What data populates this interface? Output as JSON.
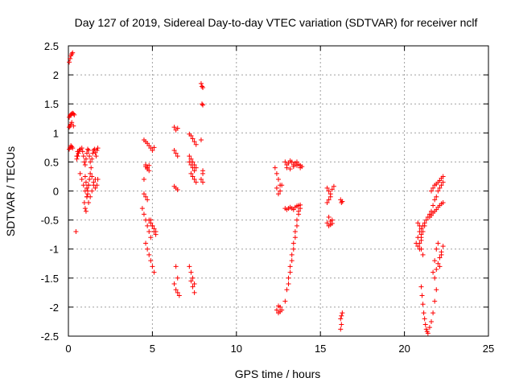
{
  "chart_data": {
    "type": "scatter",
    "title": "Day 127 of 2019, Sidereal Day-to-day VTEC variation (SDTVAR) for receiver nclf",
    "xlabel": "GPS time / hours",
    "ylabel": "SDTVAR / TECUs",
    "xlim": [
      0,
      25
    ],
    "ylim": [
      -2.5,
      2.5
    ],
    "xticks": [
      0,
      5,
      10,
      15,
      20,
      25
    ],
    "yticks": [
      -2.5,
      -2,
      -1.5,
      -1,
      -0.5,
      0,
      0.5,
      1,
      1.5,
      2,
      2.5
    ],
    "grid": true,
    "marker": "+",
    "color": "#ff0000",
    "series": [
      {
        "name": "SDTVAR",
        "x": [
          0.05,
          0.1,
          0.15,
          0.2,
          0.25,
          0.05,
          0.1,
          0.15,
          0.2,
          0.3,
          0.05,
          0.1,
          0.15,
          0.2,
          0.25,
          0.3,
          0.35,
          0.05,
          0.1,
          0.15,
          0.2,
          0.25,
          0.55,
          0.45,
          0.5,
          0.55,
          0.6,
          0.65,
          0.7,
          0.8,
          0.85,
          0.9,
          0.95,
          1.0,
          1.05,
          1.1,
          1.15,
          1.2,
          1.25,
          1.3,
          1.35,
          1.4,
          1.45,
          1.5,
          1.55,
          1.6,
          1.65,
          1.7,
          1.75,
          0.7,
          0.8,
          0.9,
          1.0,
          1.1,
          1.2,
          1.3,
          1.4,
          1.5,
          1.6,
          1.0,
          1.05,
          1.1,
          1.15,
          1.2,
          1.25,
          1.3,
          1.4,
          1.5,
          1.6,
          1.7,
          1.75,
          0.95,
          1.0,
          1.05,
          1.1,
          1.15,
          1.2,
          0.5,
          4.5,
          4.6,
          4.7,
          4.8,
          4.9,
          4.6,
          4.7,
          4.8,
          4.5,
          4.6,
          4.7,
          4.8,
          4.4,
          4.5,
          4.6,
          4.7,
          4.8,
          4.9,
          4.5,
          4.6,
          4.7,
          4.8,
          4.9,
          5.0,
          5.1,
          5.2,
          4.6,
          4.7,
          4.8,
          4.9,
          5.0,
          5.1,
          4.9,
          5.0,
          5.1,
          5.2,
          5.0,
          5.1,
          6.3,
          6.4,
          6.5,
          6.3,
          6.4,
          6.5,
          6.3,
          6.4,
          6.5,
          6.4,
          6.5,
          6.3,
          6.4,
          6.5,
          6.6,
          7.2,
          7.3,
          7.4,
          7.5,
          7.6,
          7.2,
          7.3,
          7.4,
          7.5,
          7.3,
          7.4,
          7.5,
          7.6,
          7.2,
          7.3,
          7.4,
          7.5,
          7.3,
          7.4,
          7.5,
          7.2,
          7.3,
          7.4,
          7.5,
          7.6,
          7.9,
          7.95,
          8.0,
          7.95,
          8.0,
          7.9,
          8.0,
          8.0,
          7.9,
          8.0,
          12.3,
          12.4,
          12.5,
          12.6,
          12.4,
          12.5,
          12.6,
          12.7,
          12.4,
          12.5,
          12.6,
          12.7,
          12.5,
          12.6,
          12.9,
          13.0,
          13.1,
          13.2,
          13.3,
          13.4,
          13.5,
          13.6,
          13.7,
          13.8,
          13.9,
          13.0,
          13.2,
          13.4,
          13.6,
          13.8,
          12.9,
          13.0,
          13.1,
          13.2,
          13.3,
          13.4,
          13.5,
          13.6,
          13.7,
          13.8,
          12.9,
          13.0,
          13.1,
          13.2,
          13.3,
          13.4,
          13.5,
          13.6,
          13.7,
          13.1,
          13.2,
          13.3,
          13.4,
          13.5,
          13.6,
          13.7,
          13.8,
          15.4,
          15.5,
          15.6,
          15.7,
          15.8,
          15.4,
          15.5,
          15.6,
          15.7,
          15.5,
          15.6,
          15.7,
          15.4,
          15.5,
          15.6,
          16.2,
          16.25,
          16.3,
          16.2,
          16.25,
          16.3,
          16.2,
          16.25,
          20.8,
          20.9,
          21.0,
          21.1,
          21.2,
          20.8,
          20.9,
          21.0,
          21.1,
          20.7,
          20.8,
          20.9,
          21.0,
          20.9,
          21.0,
          21.0,
          21.1,
          21.2,
          21.3,
          21.4,
          21.5,
          21.6,
          21.7,
          21.8,
          21.9,
          22.0,
          22.1,
          22.2,
          22.3,
          21.5,
          21.6,
          21.7,
          21.8,
          21.9,
          22.0,
          22.1,
          22.2,
          22.3,
          21.6,
          21.7,
          21.8,
          21.9,
          22.0,
          22.1,
          22.2,
          22.3,
          21.0,
          21.05,
          21.1,
          21.15,
          21.2,
          21.25,
          21.3,
          21.35,
          21.4,
          21.5,
          21.6,
          21.7,
          21.8,
          21.9,
          21.7,
          21.8,
          21.9,
          22.0,
          22.1,
          22.2,
          22.3,
          21.8,
          21.9,
          22.0,
          22.1,
          22.2
        ],
        "y": [
          2.22,
          2.28,
          2.33,
          2.36,
          2.38,
          1.1,
          1.12,
          1.15,
          1.18,
          1.12,
          1.27,
          1.3,
          1.32,
          1.33,
          1.34,
          1.33,
          1.31,
          0.72,
          0.75,
          0.78,
          0.76,
          0.74,
          0.68,
          -0.7,
          0.55,
          0.6,
          0.65,
          0.7,
          0.72,
          0.74,
          0.68,
          0.6,
          0.5,
          0.45,
          0.55,
          0.65,
          0.72,
          0.7,
          0.6,
          0.5,
          0.4,
          0.55,
          0.65,
          0.7,
          0.72,
          0.66,
          0.6,
          0.7,
          0.74,
          0.3,
          0.2,
          0.1,
          0.0,
          -0.1,
          -0.2,
          -0.1,
          0.0,
          0.1,
          0.2,
          0.25,
          0.15,
          0.05,
          -0.05,
          0.1,
          0.2,
          0.3,
          0.25,
          0.15,
          0.05,
          0.1,
          0.2,
          -0.2,
          -0.3,
          -0.35,
          -0.1,
          0.0,
          0.1,
          0.6,
          0.88,
          0.85,
          0.82,
          0.78,
          0.74,
          0.45,
          0.4,
          0.35,
          0.2,
          0.42,
          0.38,
          0.44,
          -0.3,
          -0.4,
          -0.5,
          -0.6,
          -0.7,
          -0.8,
          -0.05,
          -0.1,
          -0.15,
          -0.5,
          -0.55,
          -0.6,
          -0.65,
          -0.7,
          -0.9,
          -1.0,
          -1.1,
          -1.2,
          -1.3,
          -1.4,
          -0.5,
          -0.6,
          -0.7,
          -0.75,
          0.7,
          0.75,
          1.1,
          1.05,
          1.08,
          0.7,
          0.65,
          0.6,
          0.08,
          0.05,
          0.02,
          -1.3,
          -1.5,
          -1.6,
          -1.7,
          -1.75,
          -1.8,
          0.98,
          0.95,
          0.9,
          0.85,
          0.8,
          0.5,
          0.45,
          0.4,
          0.35,
          0.3,
          0.25,
          0.2,
          0.15,
          -1.3,
          -1.4,
          -1.5,
          -1.6,
          -1.55,
          -1.65,
          -1.75,
          0.6,
          0.55,
          0.5,
          0.45,
          0.4,
          1.85,
          1.8,
          1.78,
          1.5,
          1.48,
          0.88,
          0.35,
          0.3,
          0.2,
          0.15,
          0.4,
          0.3,
          0.2,
          0.1,
          0.05,
          -0.05,
          0.0,
          0.1,
          -2.05,
          -2.1,
          -2.0,
          -2.05,
          -1.98,
          -2.08,
          0.5,
          0.45,
          0.48,
          0.52,
          0.5,
          0.45,
          0.48,
          0.5,
          0.46,
          0.44,
          0.42,
          0.4,
          0.38,
          0.42,
          0.44,
          0.4,
          -0.3,
          -0.32,
          -0.3,
          -0.28,
          -0.3,
          -0.32,
          -0.28,
          -0.26,
          -0.25,
          -0.24,
          -1.9,
          -1.7,
          -1.5,
          -1.3,
          -1.1,
          -0.9,
          -0.7,
          -0.5,
          -0.35,
          -1.6,
          -1.4,
          -1.2,
          -1.0,
          -0.8,
          -0.6,
          -0.4,
          -0.3,
          0.05,
          0.0,
          -0.05,
          0.03,
          0.08,
          -0.55,
          -0.6,
          -0.58,
          -0.5,
          -0.45,
          -0.52,
          -0.56,
          -0.2,
          -0.15,
          -0.1,
          -2.2,
          -2.15,
          -2.1,
          -0.15,
          -0.2,
          -0.18,
          -2.38,
          -2.3,
          -0.55,
          -0.6,
          -0.65,
          -0.6,
          -0.55,
          -0.8,
          -0.9,
          -1.0,
          -1.1,
          -0.9,
          -0.95,
          -1.0,
          -0.85,
          -0.7,
          -0.75,
          -0.8,
          -0.7,
          -0.6,
          -0.5,
          -0.45,
          -0.4,
          -0.35,
          -0.25,
          -0.15,
          -0.1,
          0.0,
          0.05,
          0.1,
          0.15,
          -0.45,
          -0.42,
          -0.38,
          -0.35,
          -0.32,
          -0.28,
          -0.25,
          -0.22,
          -0.2,
          0.0,
          0.05,
          0.1,
          0.12,
          0.15,
          0.18,
          0.22,
          0.25,
          -1.65,
          -1.8,
          -1.95,
          -2.1,
          -2.2,
          -2.3,
          -2.38,
          -2.42,
          -2.45,
          -2.35,
          -2.25,
          -2.1,
          -1.9,
          -1.7,
          -1.4,
          -1.2,
          -1.0,
          -0.9,
          -1.3,
          -1.1,
          -0.95,
          -1.5,
          -1.35,
          -1.25,
          -1.15,
          -1.05
        ]
      }
    ]
  }
}
